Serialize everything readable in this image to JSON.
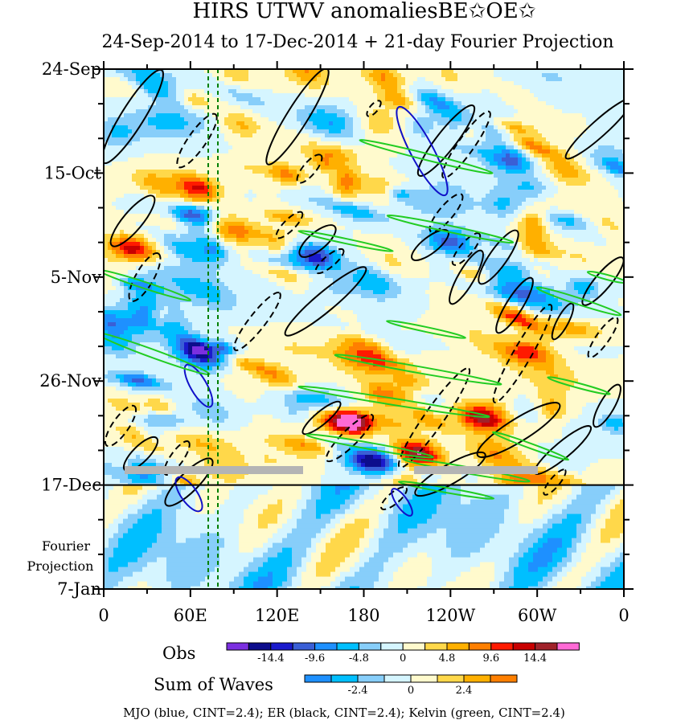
{
  "chart_data": {
    "type": "heatmap",
    "title": "HIRS UTWV anomaliesBE✩OE✩",
    "subtitle": "24-Sep-2014 to 17-Dec-2014 + 21-day Fourier Projection",
    "x_ticks": [
      "0",
      "60E",
      "120E",
      "180",
      "120W",
      "60W",
      "0"
    ],
    "y_ticks": [
      "24-Sep",
      "15-Oct",
      "5-Nov",
      "26-Nov",
      "17-Dec",
      "7-Jan"
    ],
    "y_range": [
      "24-Sep-2014",
      "7-Jan-2015"
    ],
    "observation_end": "17-Dec",
    "projection_label": [
      "Fourier",
      "Projection"
    ],
    "obs_colorbar": {
      "name": "Obs",
      "tick_labels": [
        "-14.4",
        "-9.6",
        "-4.8",
        "0",
        "4.8",
        "9.6",
        "14.4"
      ],
      "colors": [
        "#7b2fe0",
        "#0d0d8c",
        "#1a1acc",
        "#3a5fd6",
        "#1e90ff",
        "#00bfff",
        "#87cefa",
        "#d5f5ff",
        "#fffacd",
        "#ffd84a",
        "#ffb000",
        "#ff7f00",
        "#ff1a00",
        "#c80000",
        "#a0222a",
        "#ff6ad5"
      ]
    },
    "waves_colorbar": {
      "name": "Sum of Waves",
      "tick_labels": [
        "-2.4",
        "0",
        "2.4"
      ],
      "colors": [
        "#1e90ff",
        "#00bfff",
        "#87cefa",
        "#d5f5ff",
        "#fffacd",
        "#ffd84a",
        "#ffb000",
        "#ff7f00"
      ]
    },
    "contours": [
      {
        "wave": "MJO",
        "color": "blue",
        "cint": 2.4
      },
      {
        "wave": "ER",
        "color": "black",
        "cint": 2.4
      },
      {
        "wave": "Kelvin",
        "color": "green",
        "cint": 2.4
      }
    ],
    "footnote": "MJO (blue, CINT=2.4); ER (black, CINT=2.4); Kelvin (green, CINT=2.4)",
    "colors": {
      "mjo": "#1010c8",
      "er": "#000000",
      "kelvin": "#22cc22",
      "guide_line": "#008000",
      "gray_bar": "#b4b4b4"
    }
  }
}
